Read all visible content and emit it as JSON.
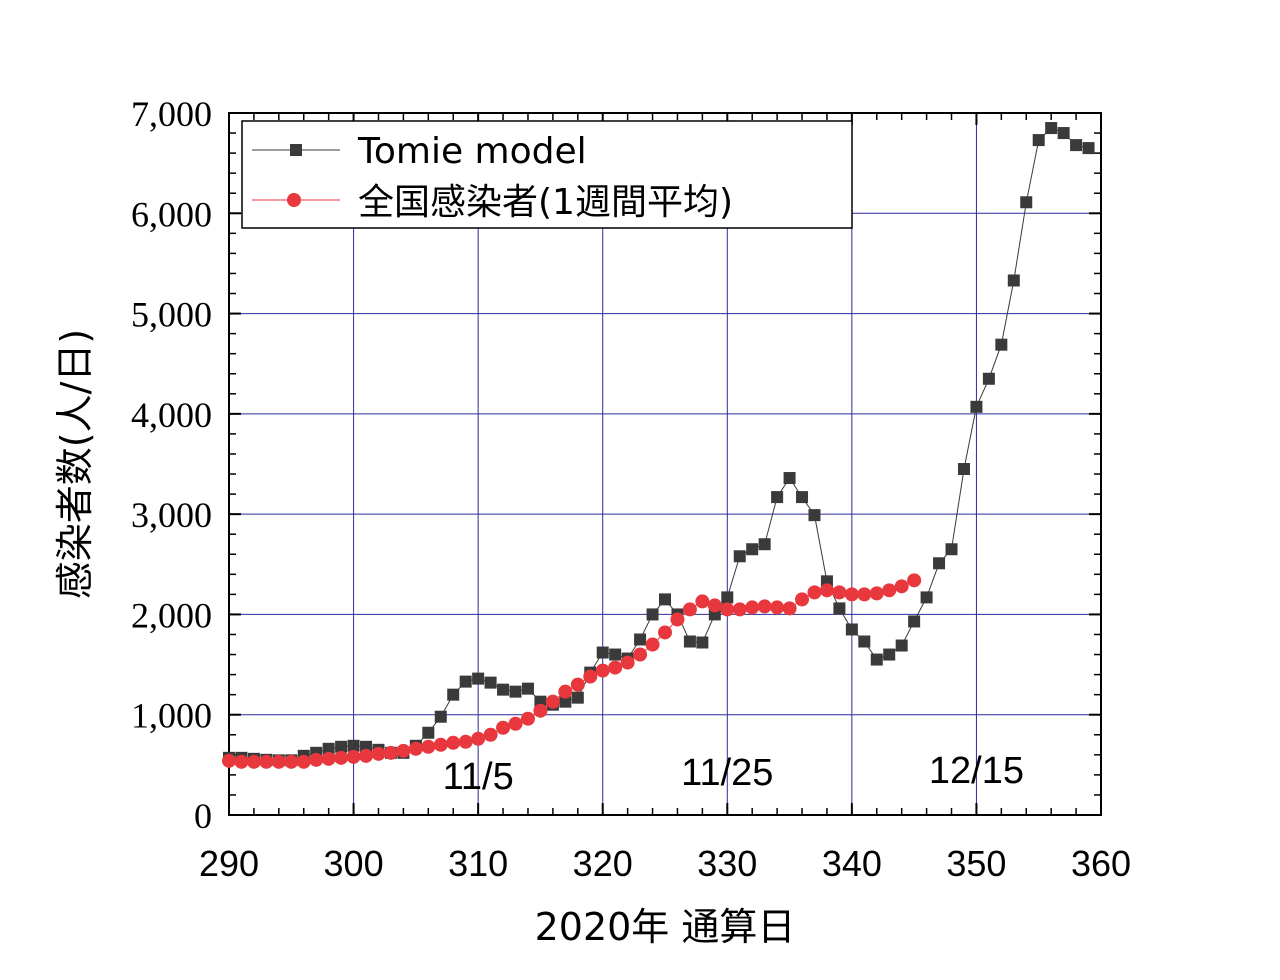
{
  "chart_data": {
    "type": "scatter",
    "xlabel": "2020年 通算日",
    "ylabel": "感染者数(人/日)",
    "xlim": [
      290,
      360
    ],
    "ylim": [
      0,
      7000
    ],
    "x_ticks": [
      "290",
      "300",
      "310",
      "320",
      "330",
      "340",
      "350",
      "360"
    ],
    "y_ticks": [
      "0",
      "1,000",
      "2,000",
      "3,000",
      "4,000",
      "5,000",
      "6,000",
      "7,000"
    ],
    "x_tick_values": [
      290,
      300,
      310,
      320,
      330,
      340,
      350,
      360
    ],
    "y_tick_values": [
      0,
      1000,
      2000,
      3000,
      4000,
      5000,
      6000,
      7000
    ],
    "grid": true,
    "legend_position": "top-left",
    "annotations": [
      {
        "text": "11/5",
        "x": 310,
        "y": 260
      },
      {
        "text": "11/25",
        "x": 330,
        "y": 300
      },
      {
        "text": "12/15",
        "x": 350,
        "y": 320
      }
    ],
    "series": [
      {
        "name": "Tomie model",
        "color": "#3a3a3a",
        "marker": "square",
        "x": [
          290,
          291,
          292,
          293,
          294,
          295,
          296,
          297,
          298,
          299,
          300,
          301,
          302,
          303,
          304,
          305,
          306,
          307,
          308,
          309,
          310,
          311,
          312,
          313,
          314,
          315,
          316,
          317,
          318,
          319,
          320,
          321,
          322,
          323,
          324,
          325,
          326,
          327,
          328,
          329,
          330,
          331,
          332,
          333,
          334,
          335,
          336,
          337,
          338,
          339,
          340,
          341,
          342,
          343,
          344,
          345,
          346,
          347,
          348,
          349,
          350,
          351,
          352,
          353,
          354,
          355,
          356,
          357,
          358,
          359
        ],
        "y": [
          570,
          570,
          560,
          550,
          545,
          545,
          590,
          620,
          660,
          680,
          690,
          680,
          650,
          620,
          620,
          690,
          820,
          980,
          1200,
          1330,
          1360,
          1320,
          1250,
          1230,
          1260,
          1130,
          1100,
          1130,
          1170,
          1420,
          1620,
          1600,
          1560,
          1750,
          2000,
          2150,
          2000,
          1730,
          1720,
          2000,
          2170,
          2580,
          2650,
          2700,
          3170,
          3360,
          3170,
          2990,
          2330,
          2060,
          1850,
          1730,
          1550,
          1600,
          1690,
          1930,
          2170,
          2510,
          2650,
          3450,
          4070,
          4350,
          4690,
          5330,
          6110,
          6730,
          6850,
          6800,
          6680,
          6650
        ]
      },
      {
        "name": "全国感染者(1週間平均)",
        "color": "#e8383d",
        "marker": "circle",
        "x": [
          290,
          291,
          292,
          293,
          294,
          295,
          296,
          297,
          298,
          299,
          300,
          301,
          302,
          303,
          304,
          305,
          306,
          307,
          308,
          309,
          310,
          311,
          312,
          313,
          314,
          315,
          316,
          317,
          318,
          319,
          320,
          321,
          322,
          323,
          324,
          325,
          326,
          327,
          328,
          329,
          330,
          331,
          332,
          333,
          334,
          335,
          336,
          337,
          338,
          339,
          340,
          341,
          342,
          343,
          344,
          345
        ],
        "y": [
          540,
          530,
          530,
          530,
          530,
          530,
          530,
          550,
          560,
          570,
          580,
          590,
          610,
          620,
          640,
          660,
          680,
          700,
          720,
          730,
          760,
          800,
          870,
          910,
          960,
          1040,
          1130,
          1230,
          1300,
          1380,
          1440,
          1470,
          1520,
          1600,
          1700,
          1820,
          1950,
          2050,
          2130,
          2090,
          2050,
          2050,
          2070,
          2080,
          2070,
          2060,
          2150,
          2220,
          2240,
          2220,
          2200,
          2200,
          2210,
          2240,
          2280,
          2340
        ]
      }
    ]
  }
}
